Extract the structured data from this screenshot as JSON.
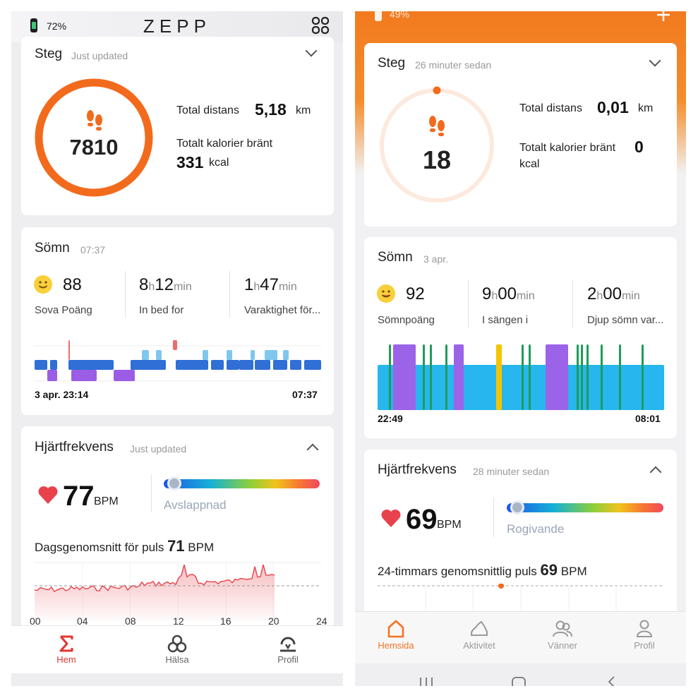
{
  "left": {
    "status": {
      "battery": "72%"
    },
    "header": {
      "logo": "ZEPP"
    },
    "steps": {
      "title": "Steg",
      "updated": "Just updated",
      "count": "7810",
      "distance_label": "Total distans",
      "distance_value": "5,18",
      "distance_unit": "km",
      "calories_label": "Totalt kalorier bränt",
      "calories_value": "331",
      "calories_unit": "kcal",
      "ring_progress": 1.0
    },
    "sleep": {
      "title": "Sömn",
      "time": "07:37",
      "score": "88",
      "score_label": "Sova Poäng",
      "inbed_h": "8",
      "inbed_m": "12",
      "inbed_label": "In bed for",
      "deep_h": "1",
      "deep_m": "47",
      "deep_label": "Varaktighet för...",
      "h_unit": "h",
      "min_unit": "min",
      "start": "3 apr. 23:14",
      "end": "07:37"
    },
    "heart": {
      "title": "Hjärtfrekvens",
      "updated": "Just updated",
      "bpm": "77",
      "bpm_unit": "BPM",
      "zone": "Avslappnad",
      "avg_label": "Dagsgenomsnitt för puls",
      "avg_value": "71",
      "avg_unit": "BPM",
      "axis": [
        "00",
        "04",
        "08",
        "12",
        "16",
        "20",
        "24"
      ]
    },
    "nav": [
      {
        "label": "Hem"
      },
      {
        "label": "Hälsa"
      },
      {
        "label": "Profil"
      }
    ]
  },
  "right": {
    "status": {
      "battery": "49%"
    },
    "steps": {
      "title": "Steg",
      "updated": "26 minuter sedan",
      "count": "18",
      "distance_label": "Total distans",
      "distance_value": "0,01",
      "distance_unit": "km",
      "calories_label": "Totalt kalorier bränt",
      "calories_value": "0",
      "calories_unit": "kcal",
      "ring_progress": 0.0
    },
    "sleep": {
      "title": "Sömn",
      "time": "3 apr.",
      "score": "92",
      "score_label": "Sömnpoäng",
      "inbed_h": "9",
      "inbed_m": "00",
      "inbed_label": "I sängen i",
      "deep_h": "2",
      "deep_m": "00",
      "deep_label": "Djup sömn var...",
      "h_unit": "h",
      "min_unit": "min",
      "start": "22:49",
      "end": "08:01"
    },
    "heart": {
      "title": "Hjärtfrekvens",
      "updated": "28 minuter sedan",
      "bpm": "69",
      "bpm_unit": "BPM",
      "zone": "Rogivande",
      "avg_label": "24-timmars genomsnittlig puls",
      "avg_value": "69",
      "avg_unit": "BPM"
    },
    "nav": [
      {
        "label": "Hemsida"
      },
      {
        "label": "Aktivitet"
      },
      {
        "label": "Vänner"
      },
      {
        "label": "Profil"
      }
    ]
  },
  "colors": {
    "steps_ring": "#f26b1d",
    "zepp_accent": "#e2362f",
    "mifit_orange": "#f37321",
    "sleep_deep": "#2f6fd6",
    "sleep_light": "#7fc7ee",
    "sleep_rem": "#9b5de5",
    "sleep_awake": "#ef6b6b",
    "mifit_light": "#27b6ee",
    "mifit_deep": "#9b63e8",
    "mifit_awake": "#f5c400",
    "mifit_green": "#1e9c5a",
    "heart_red": "#e8424c"
  }
}
